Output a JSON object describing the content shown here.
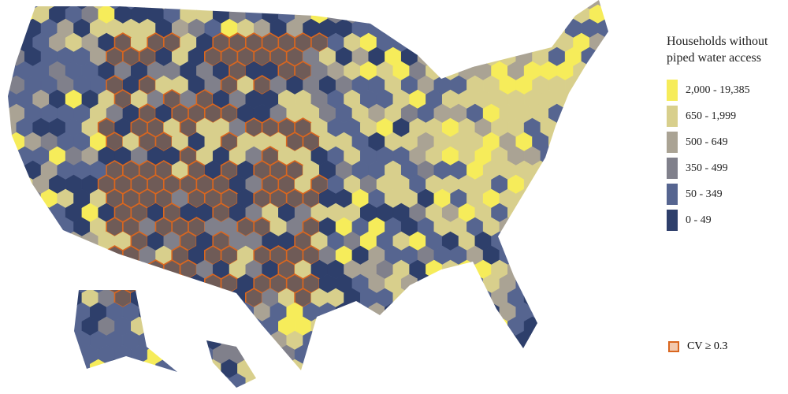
{
  "legend": {
    "title": "Households without piped water access",
    "items": [
      {
        "label": "2,000 - 19,385",
        "color": "#f6ec5a"
      },
      {
        "label": "650 - 1,999",
        "color": "#d8cf8c"
      },
      {
        "label": "500 - 649",
        "color": "#aaa394"
      },
      {
        "label": "350 - 499",
        "color": "#80808b"
      },
      {
        "label": "50 - 349",
        "color": "#566590"
      },
      {
        "label": "0 - 49",
        "color": "#2e3f6b"
      }
    ],
    "cv_label": "CV ≥ 0.3",
    "cv_fill": "#f3c9ae",
    "cv_border": "#d9661f"
  }
}
